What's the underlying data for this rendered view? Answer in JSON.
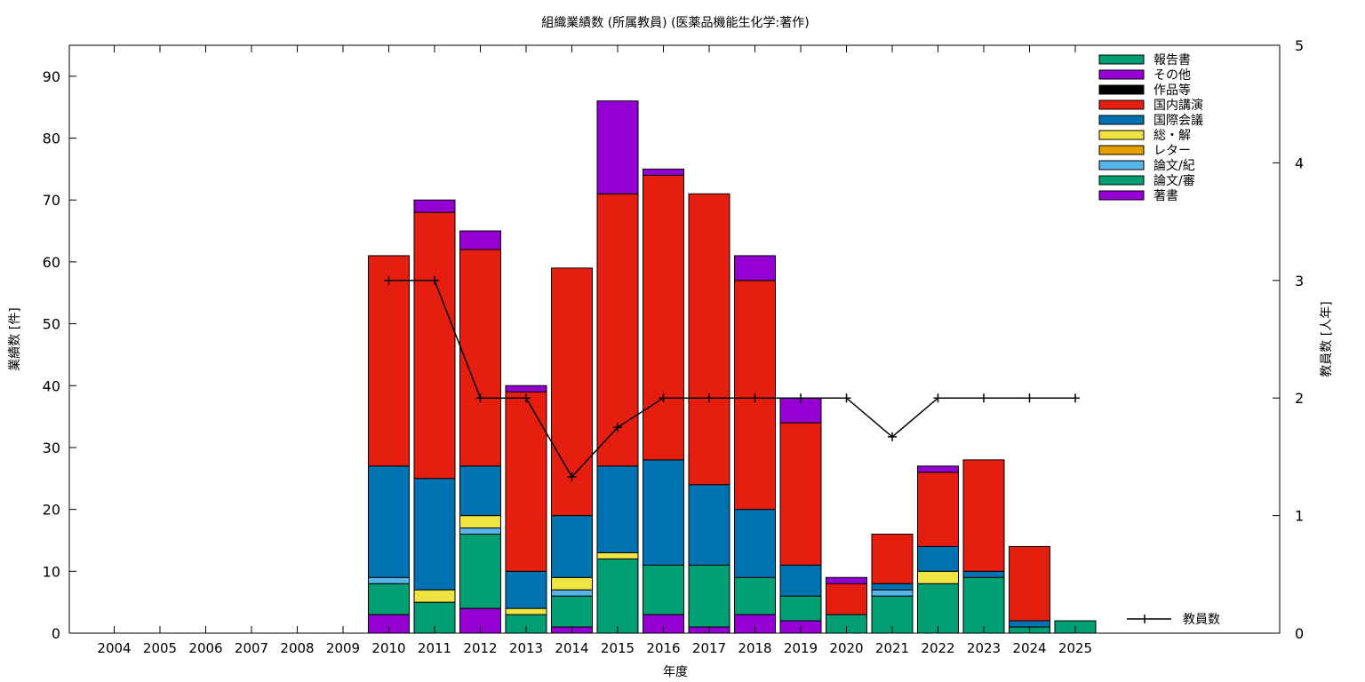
{
  "chart_data": {
    "type": "bar",
    "stacked": true,
    "title": "組織業績数 (所属教員) (医薬品機能生化学:著作)",
    "xlabel": "年度",
    "ylabel": "業績数 [件]",
    "y2label": "教員数 [人年]",
    "ylim": [
      0,
      95
    ],
    "y2lim": [
      0,
      5
    ],
    "yticks": [
      0,
      10,
      20,
      30,
      40,
      50,
      60,
      70,
      80,
      90
    ],
    "y2ticks": [
      0,
      1,
      2,
      3,
      4,
      5
    ],
    "grid": false,
    "legend_position": "top-right",
    "categories": [
      "2004",
      "2005",
      "2006",
      "2007",
      "2008",
      "2009",
      "2010",
      "2011",
      "2012",
      "2013",
      "2014",
      "2015",
      "2016",
      "2017",
      "2018",
      "2019",
      "2020",
      "2021",
      "2022",
      "2023",
      "2024",
      "2025"
    ],
    "series": [
      {
        "name": "著書",
        "color": "#9400d3",
        "values": [
          0,
          0,
          0,
          0,
          0,
          0,
          3,
          0,
          4,
          0,
          1,
          0,
          3,
          1,
          3,
          2,
          0,
          0,
          0,
          0,
          0,
          0
        ]
      },
      {
        "name": "論文/審",
        "color": "#009e73",
        "values": [
          0,
          0,
          0,
          0,
          0,
          0,
          5,
          5,
          12,
          3,
          5,
          12,
          8,
          10,
          6,
          4,
          3,
          6,
          8,
          9,
          1,
          2
        ]
      },
      {
        "name": "論文/紀",
        "color": "#56b4e9",
        "values": [
          0,
          0,
          0,
          0,
          0,
          0,
          1,
          0,
          1,
          0,
          1,
          0,
          0,
          0,
          0,
          0,
          0,
          1,
          0,
          0,
          0,
          0
        ]
      },
      {
        "name": "レター",
        "color": "#e69f00",
        "values": [
          0,
          0,
          0,
          0,
          0,
          0,
          0,
          0,
          0,
          0,
          0,
          0,
          0,
          0,
          0,
          0,
          0,
          0,
          0,
          0,
          0,
          0
        ]
      },
      {
        "name": "総・解",
        "color": "#f0e442",
        "values": [
          0,
          0,
          0,
          0,
          0,
          0,
          0,
          2,
          2,
          1,
          2,
          1,
          0,
          0,
          0,
          0,
          0,
          0,
          2,
          0,
          0,
          0
        ]
      },
      {
        "name": "国際会議",
        "color": "#0072b2",
        "values": [
          0,
          0,
          0,
          0,
          0,
          0,
          18,
          18,
          8,
          6,
          10,
          14,
          17,
          13,
          11,
          5,
          0,
          1,
          4,
          1,
          1,
          0
        ]
      },
      {
        "name": "国内講演",
        "color": "#e51e10",
        "values": [
          0,
          0,
          0,
          0,
          0,
          0,
          34,
          43,
          35,
          29,
          40,
          44,
          46,
          47,
          37,
          23,
          5,
          8,
          12,
          18,
          12,
          0
        ]
      },
      {
        "name": "作品等",
        "color": "#000000",
        "values": [
          0,
          0,
          0,
          0,
          0,
          0,
          0,
          0,
          0,
          0,
          0,
          0,
          0,
          0,
          0,
          0,
          0,
          0,
          0,
          0,
          0,
          0
        ]
      },
      {
        "name": "その他",
        "color": "#9400d3",
        "values": [
          0,
          0,
          0,
          0,
          0,
          0,
          0,
          2,
          3,
          1,
          0,
          15,
          1,
          0,
          4,
          4,
          1,
          0,
          1,
          0,
          0,
          0
        ]
      },
      {
        "name": "報告書",
        "color": "#009e73",
        "values": [
          0,
          0,
          0,
          0,
          0,
          0,
          0,
          0,
          0,
          0,
          0,
          0,
          0,
          0,
          0,
          0,
          0,
          0,
          0,
          0,
          0,
          0
        ]
      }
    ],
    "line": {
      "name": "教員数",
      "color": "#000000",
      "axis": "y2",
      "x": [
        "2010",
        "2011",
        "2012",
        "2013",
        "2014",
        "2015",
        "2016",
        "2017",
        "2018",
        "2019",
        "2020",
        "2021",
        "2022",
        "2023",
        "2024",
        "2025"
      ],
      "values": [
        3,
        3,
        2,
        2,
        1.33,
        1.75,
        2,
        2,
        2,
        2,
        2,
        1.67,
        2,
        2,
        2,
        2
      ]
    }
  }
}
